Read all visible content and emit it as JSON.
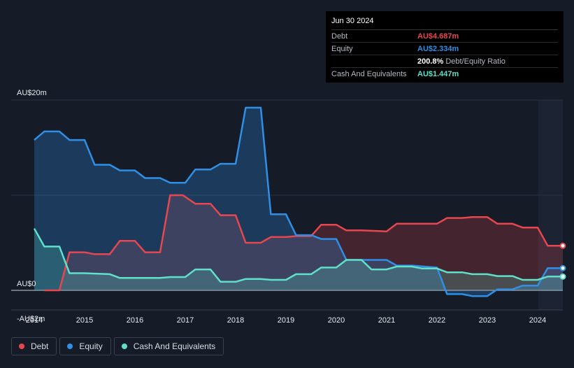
{
  "tooltip": {
    "date": "Jun 30 2024",
    "rows": [
      {
        "label": "Debt",
        "value": "AU$4.687m",
        "color": "#e8464f",
        "extra": ""
      },
      {
        "label": "Equity",
        "value": "AU$2.334m",
        "color": "#2f8fe6",
        "extra": ""
      },
      {
        "label": "",
        "value": "200.8%",
        "color": "#ffffff",
        "extra": "Debt/Equity Ratio"
      },
      {
        "label": "Cash And Equivalents",
        "value": "AU$1.447m",
        "color": "#5fe0c9",
        "extra": ""
      }
    ]
  },
  "legend": [
    {
      "label": "Debt",
      "color": "#e8464f"
    },
    {
      "label": "Equity",
      "color": "#2f8fe6"
    },
    {
      "label": "Cash And Equivalents",
      "color": "#5fe0c9"
    }
  ],
  "chart_data": {
    "type": "area",
    "y_unit": "AU$m",
    "ylim": [
      -2,
      20
    ],
    "y_tick_labels": [
      {
        "value": 20,
        "label": "AU$20m"
      },
      {
        "value": 0,
        "label": "AU$0"
      },
      {
        "value": -2,
        "label": "-AU$2m"
      }
    ],
    "xlim": [
      2014.0,
      2024.5
    ],
    "x_ticks": [
      "2014",
      "2015",
      "2016",
      "2017",
      "2018",
      "2019",
      "2020",
      "2021",
      "2022",
      "2023",
      "2024"
    ],
    "grid": true,
    "legend_position": "bottom-left",
    "series": [
      {
        "name": "Debt",
        "color": "#e8464f",
        "points": [
          [
            2014.2,
            0.0
          ],
          [
            2014.5,
            0.0
          ],
          [
            2014.7,
            4.0
          ],
          [
            2015.0,
            4.0
          ],
          [
            2015.2,
            3.8
          ],
          [
            2015.5,
            3.8
          ],
          [
            2015.7,
            5.2
          ],
          [
            2016.0,
            5.2
          ],
          [
            2016.2,
            4.0
          ],
          [
            2016.5,
            4.0
          ],
          [
            2016.7,
            10.0
          ],
          [
            2016.95,
            10.0
          ],
          [
            2017.2,
            9.1
          ],
          [
            2017.5,
            9.1
          ],
          [
            2017.7,
            7.9
          ],
          [
            2018.0,
            7.9
          ],
          [
            2018.2,
            5.0
          ],
          [
            2018.5,
            5.0
          ],
          [
            2018.7,
            5.6
          ],
          [
            2019.0,
            5.6
          ],
          [
            2019.2,
            5.7
          ],
          [
            2019.5,
            5.7
          ],
          [
            2019.7,
            6.9
          ],
          [
            2020.0,
            6.9
          ],
          [
            2020.2,
            6.3
          ],
          [
            2020.5,
            6.3
          ],
          [
            2021.0,
            6.2
          ],
          [
            2021.2,
            7.0
          ],
          [
            2021.5,
            7.0
          ],
          [
            2022.0,
            7.0
          ],
          [
            2022.2,
            7.6
          ],
          [
            2022.5,
            7.6
          ],
          [
            2022.7,
            7.7
          ],
          [
            2023.0,
            7.7
          ],
          [
            2023.2,
            7.0
          ],
          [
            2023.5,
            7.0
          ],
          [
            2023.7,
            6.6
          ],
          [
            2024.0,
            6.6
          ],
          [
            2024.2,
            4.687
          ],
          [
            2024.5,
            4.687
          ]
        ]
      },
      {
        "name": "Equity",
        "color": "#2f8fe6",
        "points": [
          [
            2014.0,
            15.8
          ],
          [
            2014.2,
            16.7
          ],
          [
            2014.5,
            16.7
          ],
          [
            2014.7,
            15.8
          ],
          [
            2015.0,
            15.8
          ],
          [
            2015.2,
            13.2
          ],
          [
            2015.5,
            13.2
          ],
          [
            2015.7,
            12.6
          ],
          [
            2016.0,
            12.6
          ],
          [
            2016.2,
            11.8
          ],
          [
            2016.5,
            11.8
          ],
          [
            2016.7,
            11.3
          ],
          [
            2017.0,
            11.3
          ],
          [
            2017.2,
            12.7
          ],
          [
            2017.5,
            12.7
          ],
          [
            2017.7,
            13.3
          ],
          [
            2018.0,
            13.3
          ],
          [
            2018.2,
            19.2
          ],
          [
            2018.5,
            19.2
          ],
          [
            2018.7,
            8.0
          ],
          [
            2019.0,
            8.0
          ],
          [
            2019.2,
            5.8
          ],
          [
            2019.5,
            5.8
          ],
          [
            2019.7,
            5.4
          ],
          [
            2020.0,
            5.4
          ],
          [
            2020.2,
            3.2
          ],
          [
            2020.5,
            3.2
          ],
          [
            2021.0,
            3.2
          ],
          [
            2021.2,
            2.6
          ],
          [
            2021.5,
            2.6
          ],
          [
            2022.0,
            2.4
          ],
          [
            2022.2,
            -0.4
          ],
          [
            2022.5,
            -0.4
          ],
          [
            2022.7,
            -0.6
          ],
          [
            2023.0,
            -0.6
          ],
          [
            2023.2,
            0.1
          ],
          [
            2023.5,
            0.1
          ],
          [
            2023.7,
            0.5
          ],
          [
            2024.0,
            0.5
          ],
          [
            2024.2,
            2.334
          ],
          [
            2024.5,
            2.334
          ]
        ]
      },
      {
        "name": "Cash And Equivalents",
        "color": "#5fe0c9",
        "points": [
          [
            2014.0,
            6.5
          ],
          [
            2014.2,
            4.6
          ],
          [
            2014.5,
            4.6
          ],
          [
            2014.7,
            1.8
          ],
          [
            2015.0,
            1.8
          ],
          [
            2015.5,
            1.7
          ],
          [
            2015.7,
            1.3
          ],
          [
            2016.0,
            1.3
          ],
          [
            2016.5,
            1.3
          ],
          [
            2016.7,
            1.4
          ],
          [
            2017.0,
            1.4
          ],
          [
            2017.2,
            2.2
          ],
          [
            2017.5,
            2.2
          ],
          [
            2017.7,
            0.9
          ],
          [
            2018.0,
            0.9
          ],
          [
            2018.2,
            1.2
          ],
          [
            2018.5,
            1.2
          ],
          [
            2018.7,
            1.1
          ],
          [
            2019.0,
            1.1
          ],
          [
            2019.2,
            1.7
          ],
          [
            2019.5,
            1.7
          ],
          [
            2019.7,
            2.4
          ],
          [
            2020.0,
            2.4
          ],
          [
            2020.2,
            3.2
          ],
          [
            2020.5,
            3.2
          ],
          [
            2020.7,
            2.2
          ],
          [
            2021.0,
            2.2
          ],
          [
            2021.2,
            2.5
          ],
          [
            2021.5,
            2.5
          ],
          [
            2021.7,
            2.3
          ],
          [
            2022.0,
            2.3
          ],
          [
            2022.2,
            1.9
          ],
          [
            2022.5,
            1.9
          ],
          [
            2022.7,
            1.7
          ],
          [
            2023.0,
            1.7
          ],
          [
            2023.2,
            1.5
          ],
          [
            2023.5,
            1.5
          ],
          [
            2023.7,
            1.1
          ],
          [
            2024.0,
            1.1
          ],
          [
            2024.2,
            1.447
          ],
          [
            2024.5,
            1.447
          ]
        ]
      }
    ]
  }
}
